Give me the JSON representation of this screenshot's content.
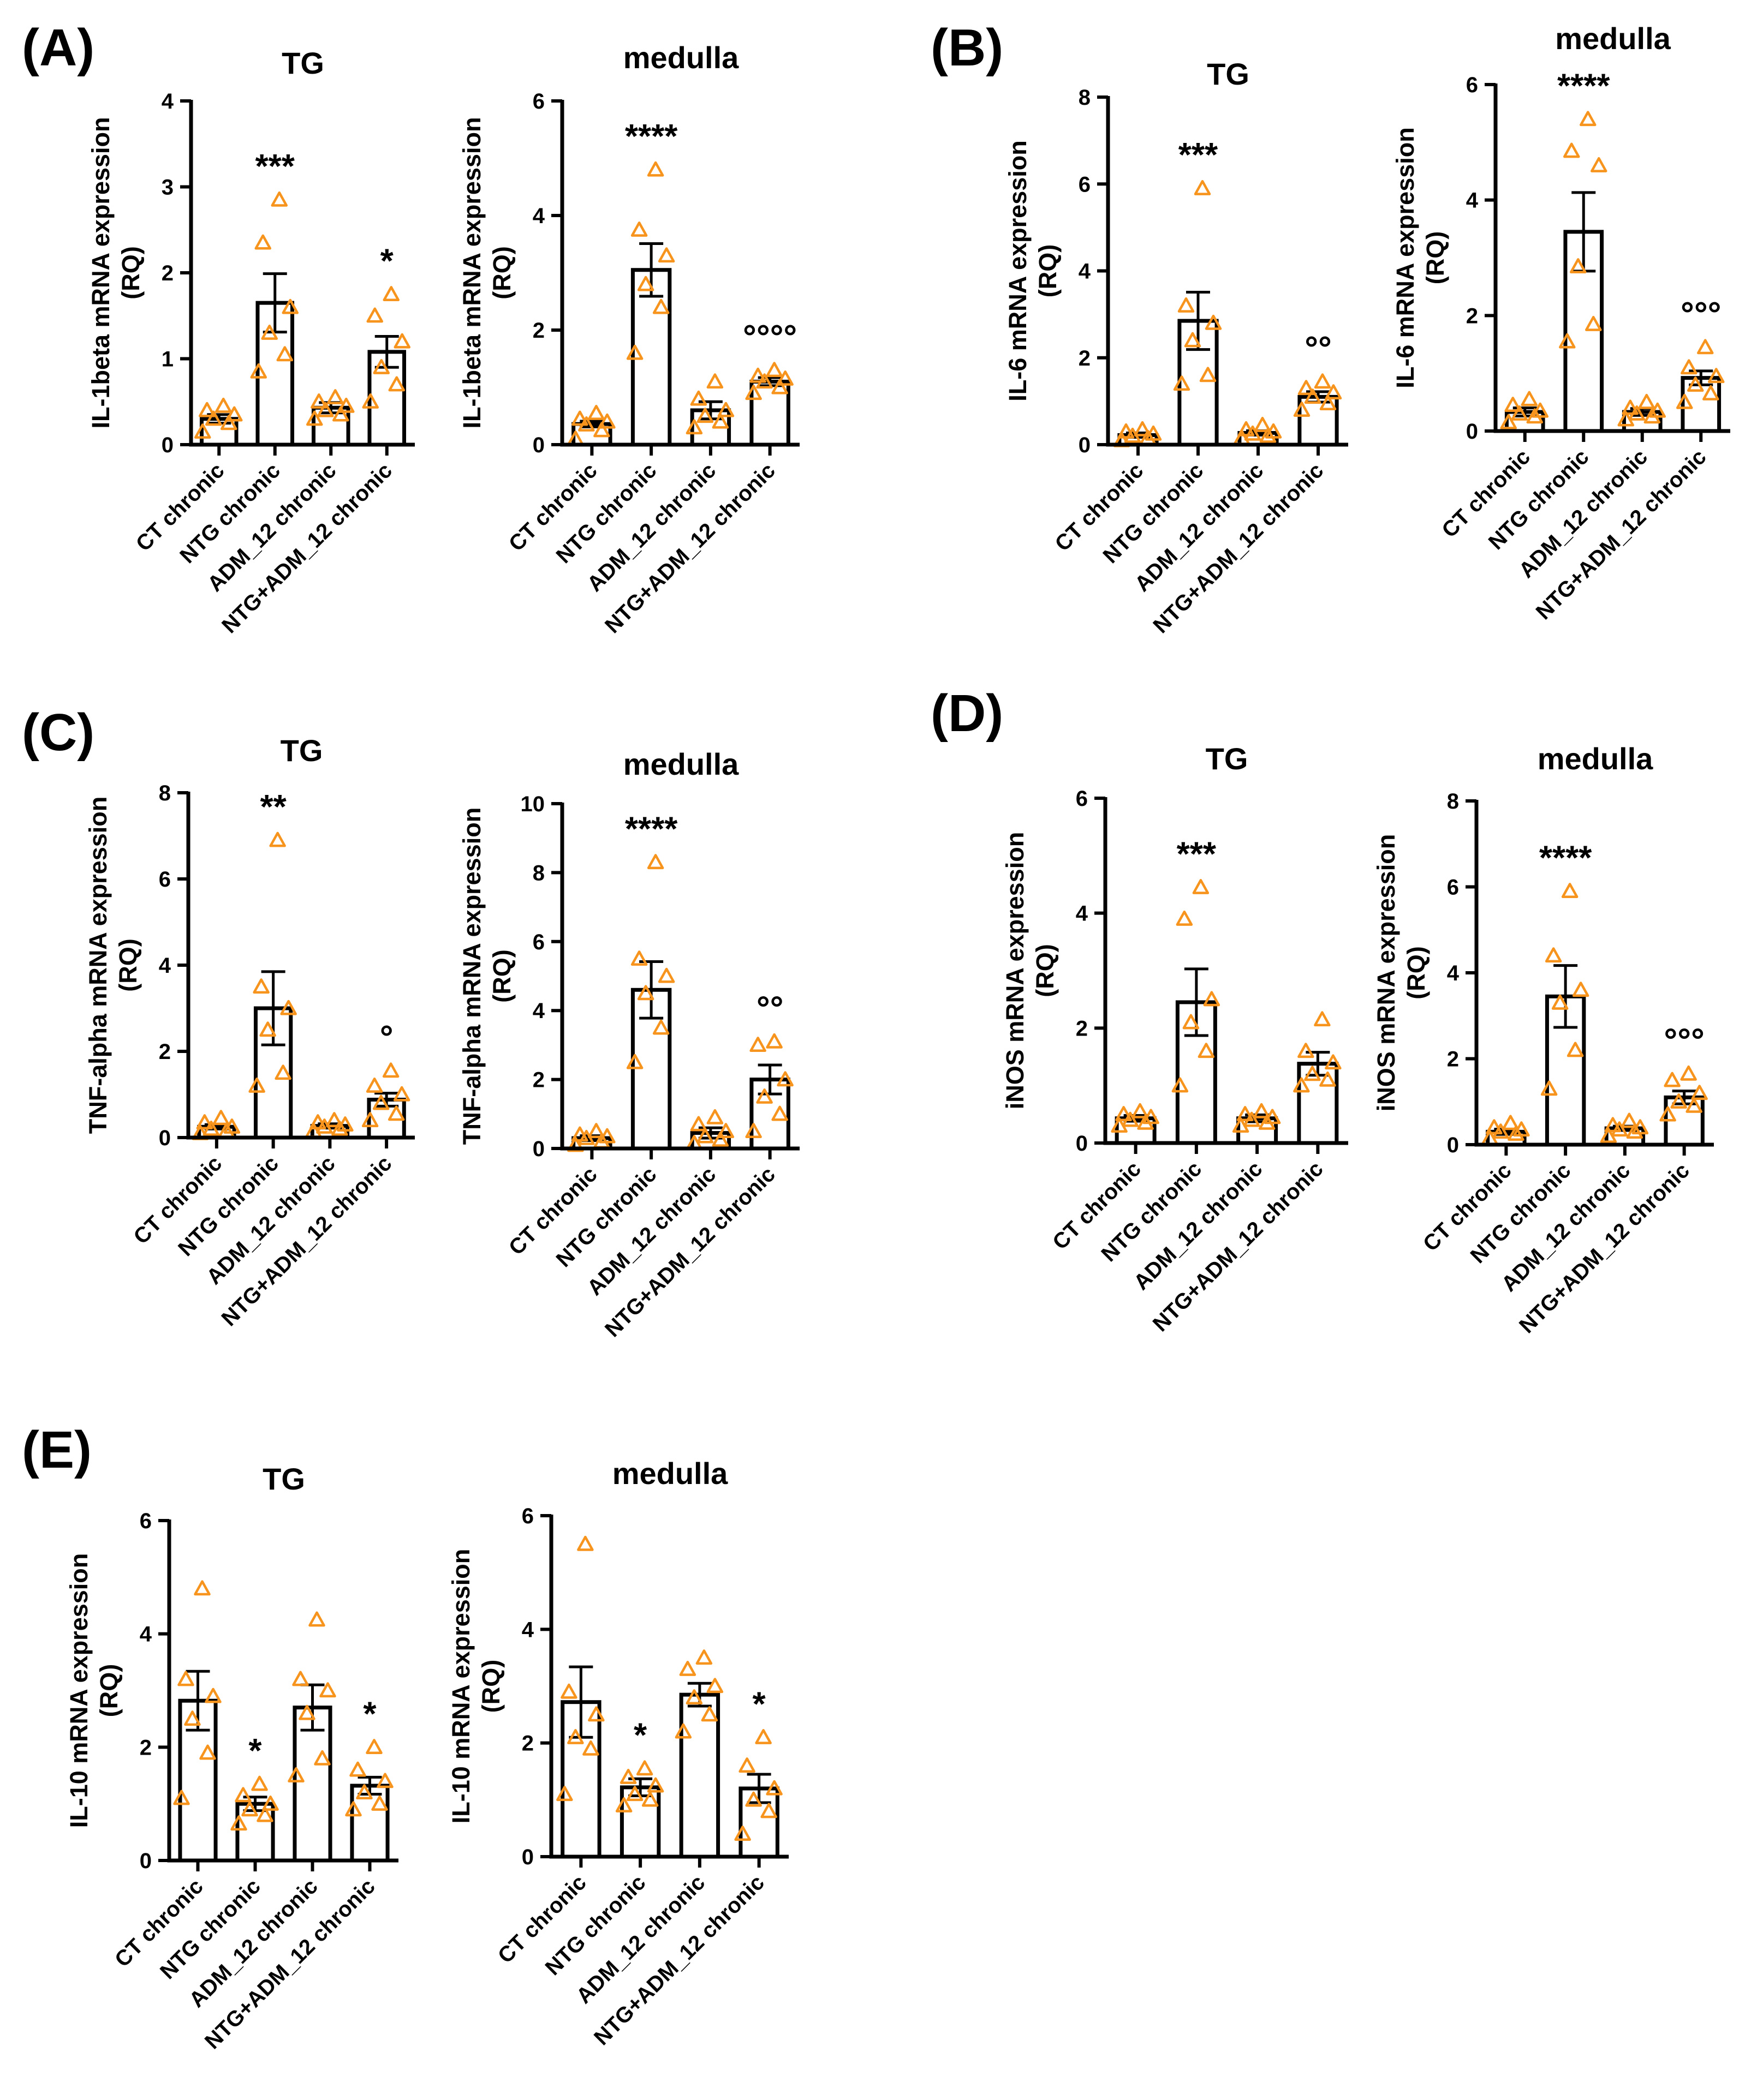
{
  "panels": [
    {
      "letter": "(A)",
      "charts": [
        {
          "title": "TG",
          "ylabel_line1": "IL-1beta mRNA expression",
          "ylabel_line2": "(RQ)",
          "ymax": 4,
          "ystep": 1,
          "means": [
            0.3,
            1.65,
            0.43,
            1.08
          ],
          "sems": [
            0.05,
            0.34,
            0.06,
            0.18
          ],
          "points": [
            [
              0.15,
              0.25,
              0.3,
              0.35,
              0.4,
              0.45
            ],
            [
              0.85,
              1.05,
              1.3,
              1.6,
              2.35,
              2.85
            ],
            [
              0.3,
              0.35,
              0.4,
              0.45,
              0.5,
              0.55
            ],
            [
              0.5,
              0.7,
              0.9,
              1.2,
              1.5,
              1.75
            ]
          ],
          "sig": [
            "",
            "***",
            "",
            "*"
          ]
        },
        {
          "title": "medulla",
          "ylabel_line1": "IL-1beta mRNA expression",
          "ylabel_line2": "(RQ)",
          "ymax": 6,
          "ystep": 2,
          "means": [
            0.36,
            3.05,
            0.6,
            1.1
          ],
          "sems": [
            0.05,
            0.46,
            0.15,
            0.07
          ],
          "points": [
            [
              0.1,
              0.25,
              0.35,
              0.4,
              0.45,
              0.55
            ],
            [
              1.6,
              2.4,
              2.8,
              3.3,
              3.75,
              4.8
            ],
            [
              0.3,
              0.4,
              0.5,
              0.6,
              0.8,
              1.1
            ],
            [
              0.9,
              1.0,
              1.1,
              1.15,
              1.2,
              1.3
            ]
          ],
          "sig": [
            "",
            "****",
            "",
            "°°°°"
          ]
        }
      ]
    },
    {
      "letter": "(B)",
      "charts": [
        {
          "title": "TG",
          "ylabel_line1": "IL-6 mRNA expression",
          "ylabel_line2": "(RQ)",
          "ymax": 8,
          "ystep": 2,
          "means": [
            0.22,
            2.85,
            0.27,
            1.1
          ],
          "sems": [
            0.05,
            0.66,
            0.05,
            0.12
          ],
          "points": [
            [
              0.1,
              0.15,
              0.2,
              0.25,
              0.3,
              0.35
            ],
            [
              1.4,
              1.6,
              2.4,
              2.8,
              3.2,
              5.9
            ],
            [
              0.15,
              0.2,
              0.25,
              0.3,
              0.35,
              0.45
            ],
            [
              0.8,
              0.95,
              1.1,
              1.2,
              1.3,
              1.45
            ]
          ],
          "sig": [
            "",
            "***",
            "",
            "°°"
          ]
        },
        {
          "title": "medulla",
          "ylabel_line1": "IL-6 mRNA expression",
          "ylabel_line2": "(RQ)",
          "ymax": 6,
          "ystep": 2,
          "means": [
            0.33,
            3.45,
            0.33,
            0.92
          ],
          "sems": [
            0.07,
            0.68,
            0.06,
            0.12
          ],
          "points": [
            [
              0.15,
              0.25,
              0.3,
              0.35,
              0.45,
              0.55
            ],
            [
              1.55,
              1.85,
              2.85,
              4.6,
              4.85,
              5.4
            ],
            [
              0.2,
              0.25,
              0.3,
              0.35,
              0.4,
              0.5
            ],
            [
              0.5,
              0.65,
              0.8,
              0.95,
              1.1,
              1.45
            ]
          ],
          "sig": [
            "",
            "****",
            "",
            "°°°"
          ]
        }
      ]
    },
    {
      "letter": "(C)",
      "charts": [
        {
          "title": "TG",
          "ylabel_line1": "TNF-alpha mRNA expression",
          "ylabel_line2": "(RQ)",
          "ymax": 8,
          "ystep": 2,
          "means": [
            0.25,
            3.0,
            0.27,
            0.88
          ],
          "sems": [
            0.05,
            0.85,
            0.05,
            0.15
          ],
          "points": [
            [
              0.1,
              0.15,
              0.2,
              0.25,
              0.35,
              0.45
            ],
            [
              1.2,
              1.5,
              2.5,
              3.0,
              3.5,
              6.9
            ],
            [
              0.15,
              0.2,
              0.25,
              0.3,
              0.35,
              0.4
            ],
            [
              0.4,
              0.55,
              0.8,
              1.0,
              1.2,
              1.55
            ]
          ],
          "sig": [
            "",
            "**",
            "",
            "°"
          ]
        },
        {
          "title": "medulla",
          "ylabel_line1": "TNF-alpha mRNA expression",
          "ylabel_line2": "(RQ)",
          "ymax": 10,
          "ystep": 2,
          "means": [
            0.3,
            4.6,
            0.45,
            2.0
          ],
          "sems": [
            0.07,
            0.82,
            0.15,
            0.42
          ],
          "points": [
            [
              0.1,
              0.2,
              0.3,
              0.35,
              0.4,
              0.5
            ],
            [
              2.5,
              3.5,
              4.5,
              5.0,
              5.5,
              8.3
            ],
            [
              0.15,
              0.25,
              0.35,
              0.5,
              0.7,
              0.9
            ],
            [
              0.5,
              1.0,
              1.5,
              2.0,
              3.0,
              3.1
            ]
          ],
          "sig": [
            "",
            "****",
            "",
            "°°"
          ]
        }
      ]
    },
    {
      "letter": "(D)",
      "charts": [
        {
          "title": "TG",
          "ylabel_line1": "iNOS mRNA expression",
          "ylabel_line2": "(RQ)",
          "ymax": 6,
          "ystep": 2,
          "means": [
            0.43,
            2.45,
            0.43,
            1.38
          ],
          "sems": [
            0.05,
            0.58,
            0.06,
            0.2
          ],
          "points": [
            [
              0.3,
              0.35,
              0.4,
              0.45,
              0.5,
              0.55
            ],
            [
              1.0,
              1.6,
              2.1,
              2.5,
              3.9,
              4.45
            ],
            [
              0.3,
              0.35,
              0.4,
              0.45,
              0.5,
              0.55
            ],
            [
              1.0,
              1.1,
              1.2,
              1.4,
              1.6,
              2.15
            ]
          ],
          "sig": [
            "",
            "***",
            "",
            ""
          ]
        },
        {
          "title": "medulla",
          "ylabel_line1": "iNOS mRNA expression",
          "ylabel_line2": "(RQ)",
          "ymax": 8,
          "ystep": 2,
          "means": [
            0.3,
            3.45,
            0.38,
            1.1
          ],
          "sems": [
            0.06,
            0.72,
            0.05,
            0.15
          ],
          "points": [
            [
              0.15,
              0.25,
              0.3,
              0.35,
              0.4,
              0.5
            ],
            [
              1.3,
              2.2,
              3.3,
              3.6,
              4.4,
              5.9
            ],
            [
              0.2,
              0.3,
              0.35,
              0.4,
              0.45,
              0.55
            ],
            [
              0.7,
              0.9,
              1.0,
              1.2,
              1.5,
              1.65
            ]
          ],
          "sig": [
            "",
            "****",
            "",
            "°°°"
          ]
        }
      ]
    },
    {
      "letter": "(E)",
      "charts": [
        {
          "title": "TG",
          "ylabel_line1": "IL-10 mRNA expression",
          "ylabel_line2": "(RQ)",
          "ymax": 6,
          "ystep": 2,
          "means": [
            2.82,
            1.0,
            2.7,
            1.32
          ],
          "sems": [
            0.52,
            0.12,
            0.4,
            0.15
          ],
          "points": [
            [
              1.1,
              1.9,
              2.5,
              2.9,
              3.2,
              4.8
            ],
            [
              0.65,
              0.8,
              0.9,
              1.0,
              1.15,
              1.35
            ],
            [
              1.5,
              1.8,
              2.6,
              3.0,
              3.2,
              4.25
            ],
            [
              0.9,
              1.0,
              1.2,
              1.4,
              1.6,
              2.0
            ]
          ],
          "sig": [
            "",
            "*",
            "",
            "*"
          ]
        },
        {
          "title": "medulla",
          "ylabel_line1": "IL-10 mRNA expression",
          "ylabel_line2": "(RQ)",
          "ymax": 6,
          "ystep": 2,
          "means": [
            2.72,
            1.22,
            2.85,
            1.2
          ],
          "sems": [
            0.62,
            0.15,
            0.2,
            0.25
          ],
          "points": [
            [
              1.1,
              1.9,
              2.1,
              2.5,
              2.9,
              5.5
            ],
            [
              0.9,
              1.0,
              1.1,
              1.25,
              1.4,
              1.55
            ],
            [
              2.2,
              2.5,
              2.8,
              3.0,
              3.3,
              3.5
            ],
            [
              0.4,
              0.8,
              1.0,
              1.2,
              1.6,
              2.1
            ]
          ],
          "sig": [
            "",
            "*",
            "",
            "*"
          ]
        }
      ]
    }
  ],
  "categories": [
    "CT chronic",
    "NTG chronic",
    "ADM_12 chronic",
    "NTG+ADM_12 chronic"
  ],
  "colors": {
    "points": "#f7941d",
    "bars": "#ffffff",
    "axes": "#000000"
  },
  "chart_data": [
    {
      "type": "bar",
      "panel": "(A)",
      "title": "TG",
      "ylabel": "IL-1beta mRNA expression (RQ)",
      "categories": [
        "CT chronic",
        "NTG chronic",
        "ADM_12 chronic",
        "NTG+ADM_12 chronic"
      ],
      "values": [
        0.3,
        1.65,
        0.43,
        1.08
      ],
      "ylim": [
        0,
        4
      ]
    },
    {
      "type": "bar",
      "panel": "(A)",
      "title": "medulla",
      "ylabel": "IL-1beta mRNA expression (RQ)",
      "categories": [
        "CT chronic",
        "NTG chronic",
        "ADM_12 chronic",
        "NTG+ADM_12 chronic"
      ],
      "values": [
        0.36,
        3.05,
        0.6,
        1.1
      ],
      "ylim": [
        0,
        6
      ]
    },
    {
      "type": "bar",
      "panel": "(B)",
      "title": "TG",
      "ylabel": "IL-6 mRNA expression (RQ)",
      "categories": [
        "CT chronic",
        "NTG chronic",
        "ADM_12 chronic",
        "NTG+ADM_12 chronic"
      ],
      "values": [
        0.22,
        2.85,
        0.27,
        1.1
      ],
      "ylim": [
        0,
        8
      ]
    },
    {
      "type": "bar",
      "panel": "(B)",
      "title": "medulla",
      "ylabel": "IL-6 mRNA expression (RQ)",
      "categories": [
        "CT chronic",
        "NTG chronic",
        "ADM_12 chronic",
        "NTG+ADM_12 chronic"
      ],
      "values": [
        0.33,
        3.45,
        0.33,
        0.92
      ],
      "ylim": [
        0,
        6
      ]
    },
    {
      "type": "bar",
      "panel": "(C)",
      "title": "TG",
      "ylabel": "TNF-alpha mRNA expression (RQ)",
      "categories": [
        "CT chronic",
        "NTG chronic",
        "ADM_12 chronic",
        "NTG+ADM_12 chronic"
      ],
      "values": [
        0.25,
        3.0,
        0.27,
        0.88
      ],
      "ylim": [
        0,
        8
      ]
    },
    {
      "type": "bar",
      "panel": "(C)",
      "title": "medulla",
      "ylabel": "TNF-alpha mRNA expression (RQ)",
      "categories": [
        "CT chronic",
        "NTG chronic",
        "ADM_12 chronic",
        "NTG+ADM_12 chronic"
      ],
      "values": [
        0.3,
        4.6,
        0.45,
        2.0
      ],
      "ylim": [
        0,
        10
      ]
    },
    {
      "type": "bar",
      "panel": "(D)",
      "title": "TG",
      "ylabel": "iNOS mRNA expression (RQ)",
      "categories": [
        "CT chronic",
        "NTG chronic",
        "ADM_12 chronic",
        "NTG+ADM_12 chronic"
      ],
      "values": [
        0.43,
        2.45,
        0.43,
        1.38
      ],
      "ylim": [
        0,
        6
      ]
    },
    {
      "type": "bar",
      "panel": "(D)",
      "title": "medulla",
      "ylabel": "iNOS mRNA expression (RQ)",
      "categories": [
        "CT chronic",
        "NTG chronic",
        "ADM_12 chronic",
        "NTG+ADM_12 chronic"
      ],
      "values": [
        0.3,
        3.45,
        0.38,
        1.1
      ],
      "ylim": [
        0,
        8
      ]
    },
    {
      "type": "bar",
      "panel": "(E)",
      "title": "TG",
      "ylabel": "IL-10 mRNA expression (RQ)",
      "categories": [
        "CT chronic",
        "NTG chronic",
        "ADM_12 chronic",
        "NTG+ADM_12 chronic"
      ],
      "values": [
        2.82,
        1.0,
        2.7,
        1.32
      ],
      "ylim": [
        0,
        6
      ]
    },
    {
      "type": "bar",
      "panel": "(E)",
      "title": "medulla",
      "ylabel": "IL-10 mRNA expression (RQ)",
      "categories": [
        "CT chronic",
        "NTG chronic",
        "ADM_12 chronic",
        "NTG+ADM_12 chronic"
      ],
      "values": [
        2.72,
        1.22,
        2.85,
        1.2
      ],
      "ylim": [
        0,
        6
      ]
    }
  ]
}
